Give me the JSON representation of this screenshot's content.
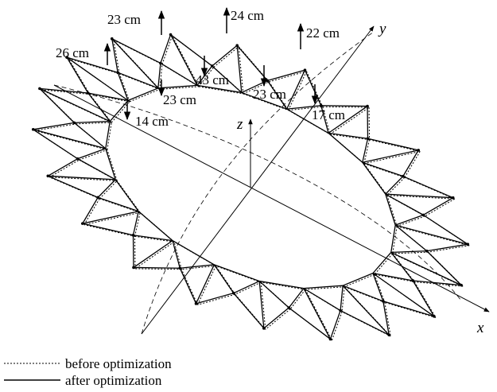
{
  "annotations": [
    "23 cm",
    "24 cm",
    "22 cm",
    "26 cm",
    "43 cm",
    "23 cm",
    "23 cm",
    "14 cm",
    "17 cm"
  ],
  "axes": {
    "x": "x",
    "y": "y",
    "z": "z"
  },
  "legend": {
    "before": "before optimization",
    "after": "after optimization"
  }
}
